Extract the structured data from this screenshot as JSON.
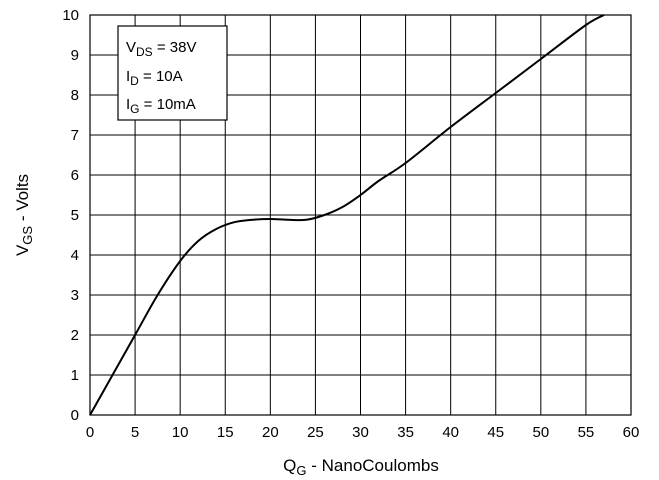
{
  "chart_data": {
    "type": "line",
    "title": "",
    "xlabel": {
      "main": "Q",
      "sub": "G",
      "rest": " - NanoCoulombs"
    },
    "ylabel": {
      "main": "V",
      "sub": "GS",
      "rest": " - Volts"
    },
    "xlim": [
      0,
      60
    ],
    "ylim": [
      0,
      10
    ],
    "xticks": [
      "0",
      "5",
      "10",
      "15",
      "20",
      "25",
      "30",
      "35",
      "40",
      "45",
      "50",
      "55",
      "60"
    ],
    "yticks": [
      "0",
      "1",
      "2",
      "3",
      "4",
      "5",
      "6",
      "7",
      "8",
      "9",
      "10"
    ],
    "grid": true,
    "legend_position": "top-left",
    "conditions": [
      {
        "main": "V",
        "sub": "DS",
        "rest": " = 38V"
      },
      {
        "main": "I",
        "sub": "D",
        "rest": " = 10A"
      },
      {
        "main": "I",
        "sub": "G",
        "rest": " = 10mA"
      }
    ],
    "series": [
      {
        "x": [
          0,
          2.5,
          5,
          7.5,
          10,
          12,
          14,
          16,
          18,
          20,
          22,
          24,
          26,
          28,
          30,
          32,
          35,
          40,
          45,
          50,
          55,
          57
        ],
        "y": [
          0,
          1.0,
          2.0,
          3.0,
          3.85,
          4.35,
          4.65,
          4.82,
          4.88,
          4.9,
          4.88,
          4.88,
          5.0,
          5.2,
          5.5,
          5.85,
          6.3,
          7.2,
          8.05,
          8.9,
          9.75,
          10.0
        ]
      }
    ],
    "colors": {
      "line": "#000000",
      "grid": "#000000",
      "background": "#ffffff"
    }
  }
}
